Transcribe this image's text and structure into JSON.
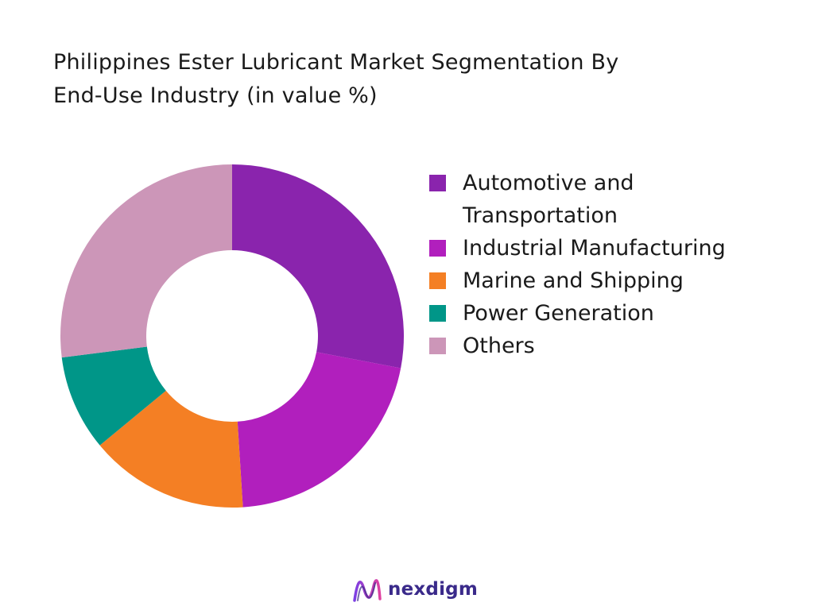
{
  "title_lines": [
    "Philippines Ester Lubricant Market Segmentation By",
    "End-Use Industry (in value %)"
  ],
  "chart_data": {
    "type": "pie",
    "variant": "donut",
    "title": "Philippines Ester Lubricant Market Segmentation By End-Use Industry (in value %)",
    "legend_position": "right",
    "categories": [
      "Automotive and Transportation",
      "Industrial Manufacturing",
      "Marine and Shipping",
      "Power Generation",
      "Others"
    ],
    "values": [
      28,
      21,
      15,
      9,
      27
    ],
    "colors": [
      "#8a24ad",
      "#b11fbd",
      "#f47f24",
      "#009688",
      "#cc96b8"
    ]
  },
  "legend": {
    "items": [
      {
        "label_lines": [
          "Automotive and",
          "Transportation"
        ],
        "color": "#8a24ad"
      },
      {
        "label_lines": [
          "Industrial Manufacturing"
        ],
        "color": "#b11fbd"
      },
      {
        "label_lines": [
          "Marine and Shipping"
        ],
        "color": "#f47f24"
      },
      {
        "label_lines": [
          "Power Generation"
        ],
        "color": "#009688"
      },
      {
        "label_lines": [
          "Others"
        ],
        "color": "#cc96b8"
      }
    ]
  },
  "logo": {
    "text": "nexdigm",
    "icon": "nexdigm-wave-logo-icon"
  }
}
